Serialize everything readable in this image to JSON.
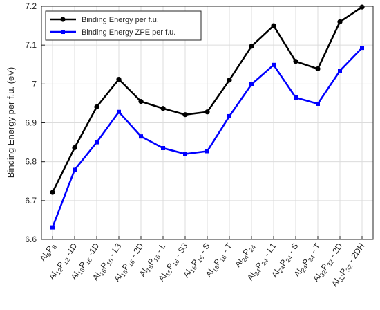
{
  "chart_data": {
    "type": "line",
    "title": "",
    "xlabel": "",
    "ylabel": "Binding Energy per f.u. (eV)",
    "ylim": [
      6.6,
      7.2
    ],
    "yticks": [
      "6.6",
      "6.7",
      "6.8",
      "6.9",
      "7",
      "7.1",
      "7.2"
    ],
    "grid": true,
    "legend_position": "top-left",
    "categories": [
      [
        {
          "t": "Al"
        },
        {
          "t": "8",
          "sub": true
        },
        {
          "t": "P"
        },
        {
          "t": "8",
          "sub": true
        }
      ],
      [
        {
          "t": "Al"
        },
        {
          "t": "12",
          "sub": true
        },
        {
          "t": "P"
        },
        {
          "t": "12",
          "sub": true
        },
        {
          "t": " -1D"
        }
      ],
      [
        {
          "t": "Al"
        },
        {
          "t": "16",
          "sub": true
        },
        {
          "t": "P"
        },
        {
          "t": "16",
          "sub": true
        },
        {
          "t": " -1D"
        }
      ],
      [
        {
          "t": "Al"
        },
        {
          "t": "16",
          "sub": true
        },
        {
          "t": "P"
        },
        {
          "t": "16",
          "sub": true
        },
        {
          "t": " - L3"
        }
      ],
      [
        {
          "t": "Al"
        },
        {
          "t": "16",
          "sub": true
        },
        {
          "t": "P"
        },
        {
          "t": "16",
          "sub": true
        },
        {
          "t": " - 2D"
        }
      ],
      [
        {
          "t": "Al"
        },
        {
          "t": "16",
          "sub": true
        },
        {
          "t": "P"
        },
        {
          "t": "16",
          "sub": true
        },
        {
          "t": " - L"
        }
      ],
      [
        {
          "t": "Al"
        },
        {
          "t": "16",
          "sub": true
        },
        {
          "t": "P"
        },
        {
          "t": "16",
          "sub": true
        },
        {
          "t": " - S3"
        }
      ],
      [
        {
          "t": "Al"
        },
        {
          "t": "16",
          "sub": true
        },
        {
          "t": "P"
        },
        {
          "t": "16",
          "sub": true
        },
        {
          "t": " - S"
        }
      ],
      [
        {
          "t": "Al"
        },
        {
          "t": "16",
          "sub": true
        },
        {
          "t": "P"
        },
        {
          "t": "16",
          "sub": true
        },
        {
          "t": " - T"
        }
      ],
      [
        {
          "t": "Al"
        },
        {
          "t": "24",
          "sub": true
        },
        {
          "t": "P"
        },
        {
          "t": "24",
          "sub": true
        }
      ],
      [
        {
          "t": "Al"
        },
        {
          "t": "24",
          "sub": true
        },
        {
          "t": "P"
        },
        {
          "t": "24",
          "sub": true
        },
        {
          "t": " - L1"
        }
      ],
      [
        {
          "t": "Al"
        },
        {
          "t": "24",
          "sub": true
        },
        {
          "t": "P"
        },
        {
          "t": "24",
          "sub": true
        },
        {
          "t": " - S"
        }
      ],
      [
        {
          "t": "Al"
        },
        {
          "t": "24",
          "sub": true
        },
        {
          "t": "P"
        },
        {
          "t": "24",
          "sub": true
        },
        {
          "t": " - T"
        }
      ],
      [
        {
          "t": "Al"
        },
        {
          "t": "32",
          "sub": true
        },
        {
          "t": "P"
        },
        {
          "t": "32",
          "sub": true
        },
        {
          "t": " - 2D"
        }
      ],
      [
        {
          "t": "Al"
        },
        {
          "t": "32",
          "sub": true
        },
        {
          "t": "P"
        },
        {
          "t": "32",
          "sub": true
        },
        {
          "t": " - 2DH"
        }
      ]
    ],
    "series": [
      {
        "name": "Binding Energy per f.u.",
        "color": "#000000",
        "marker": "circle",
        "values": [
          6.721,
          6.836,
          6.941,
          7.012,
          6.955,
          6.937,
          6.921,
          6.928,
          7.01,
          7.097,
          7.15,
          7.058,
          7.039,
          7.16,
          7.198
        ]
      },
      {
        "name": "Binding Energy ZPE per f.u.",
        "color": "#0000ff",
        "marker": "square",
        "values": [
          6.631,
          6.779,
          6.85,
          6.928,
          6.865,
          6.835,
          6.82,
          6.827,
          6.917,
          6.999,
          7.049,
          6.965,
          6.949,
          7.034,
          7.093
        ]
      }
    ]
  }
}
